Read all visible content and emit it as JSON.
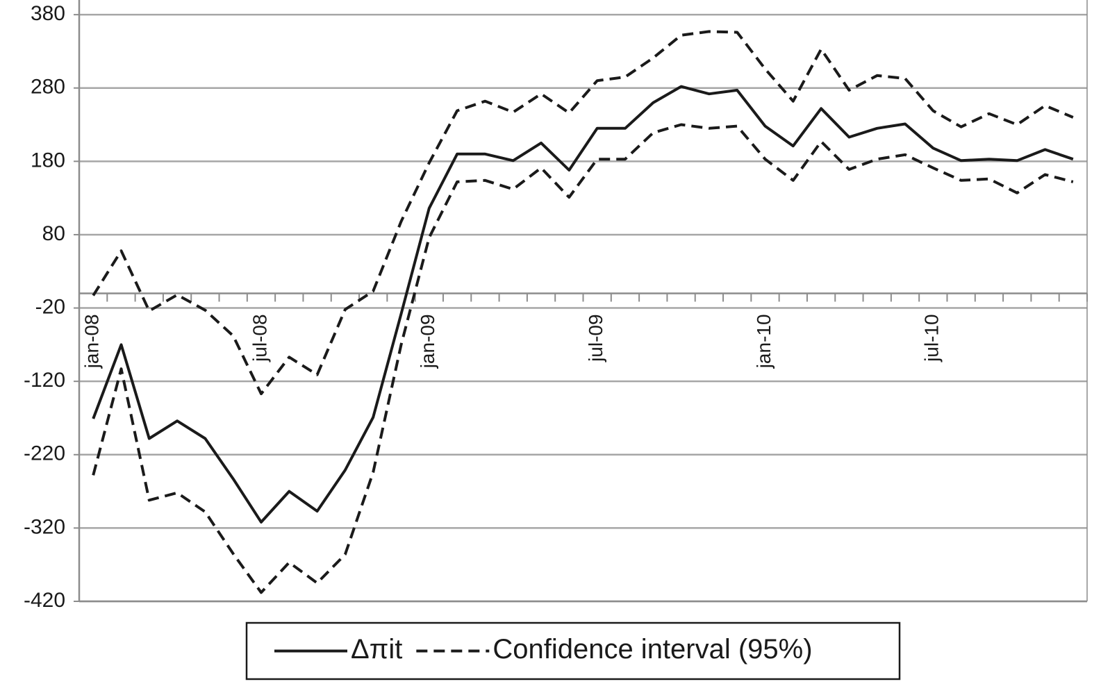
{
  "chart_data": {
    "type": "line",
    "categories": [
      "jan-08",
      null,
      null,
      null,
      null,
      null,
      "jul-08",
      null,
      null,
      null,
      null,
      null,
      "jan-09",
      null,
      null,
      null,
      null,
      null,
      "jul-09",
      null,
      null,
      null,
      null,
      null,
      "jan-10",
      null,
      null,
      null,
      null,
      null,
      "jul-10",
      null,
      null,
      null,
      null,
      null
    ],
    "series": [
      {
        "name": "Δπit",
        "color": "#1a1a1a",
        "dashed": false,
        "values": [
          -171,
          -70,
          -198,
          -174,
          -198,
          -253,
          -312,
          -270,
          -297,
          -241,
          -169,
          -28,
          116,
          190,
          190,
          181,
          205,
          168,
          225,
          225,
          260,
          282,
          272,
          277,
          228,
          201,
          252,
          213,
          225,
          231,
          198,
          181,
          183,
          181,
          196,
          183
        ]
      },
      {
        "name": "Confidence interval (95%)",
        "color": "#1a1a1a",
        "dashed": true,
        "values": [
          -3,
          58,
          -24,
          -2,
          -23,
          -58,
          -137,
          -87,
          -111,
          -22,
          3,
          98,
          178,
          249,
          262,
          247,
          272,
          246,
          290,
          295,
          321,
          352,
          357,
          356,
          306,
          262,
          333,
          277,
          297,
          293,
          249,
          227,
          245,
          230,
          256,
          240
        ]
      },
      {
        "color": "#1a1a1a",
        "dashed": true,
        "values": [
          -248,
          -103,
          -282,
          -272,
          -298,
          -355,
          -408,
          -367,
          -395,
          -356,
          -244,
          -70,
          76,
          152,
          154,
          142,
          171,
          131,
          183,
          183,
          219,
          230,
          225,
          228,
          183,
          154,
          207,
          169,
          183,
          189,
          171,
          154,
          156,
          137,
          162,
          152
        ]
      }
    ],
    "ylim": [
      -420,
      400
    ],
    "yticks": [
      -420,
      -320,
      -220,
      -120,
      -20,
      80,
      180,
      280,
      380
    ],
    "grid": true,
    "legend": "bottom"
  }
}
